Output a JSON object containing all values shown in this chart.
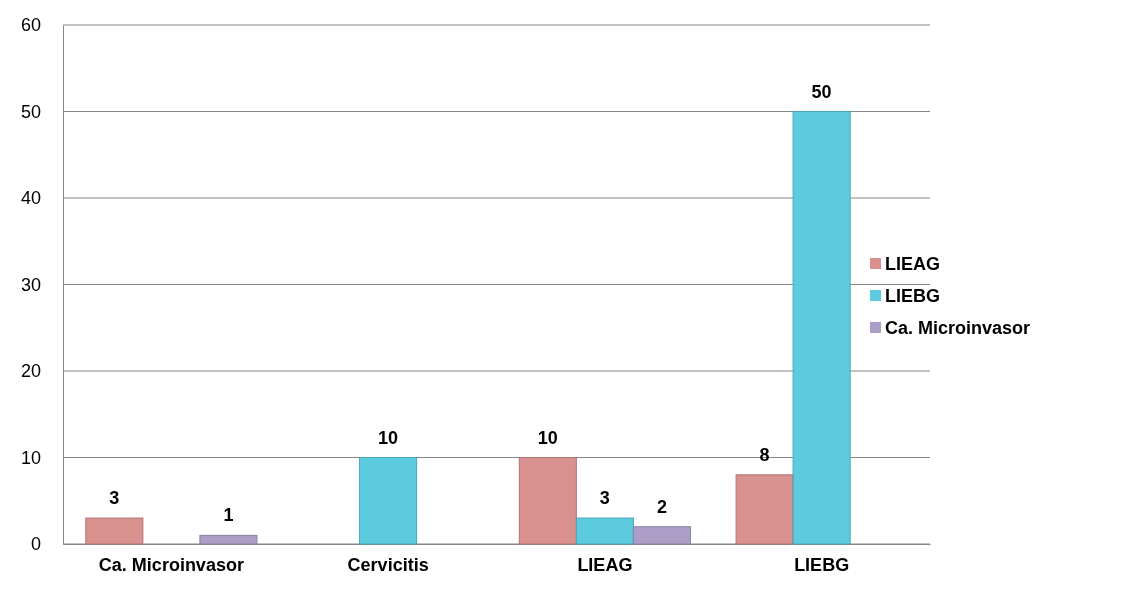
{
  "chart_data": {
    "type": "bar",
    "categories": [
      "Ca. Microinvasor",
      "Cervicitis",
      "LIEAG",
      "LIEBG"
    ],
    "series": [
      {
        "name": "LIEAG",
        "color": "#d9918f",
        "values": [
          3,
          null,
          10,
          8
        ]
      },
      {
        "name": "LIEBG",
        "color": "#5ccbe0",
        "values": [
          null,
          10,
          3,
          50
        ]
      },
      {
        "name": "Ca. Microinvasor",
        "color": "#ab9fc8",
        "values": [
          1,
          null,
          2,
          null
        ]
      }
    ],
    "ylim": [
      0,
      60
    ],
    "yticks": [
      0,
      10,
      20,
      30,
      40,
      50,
      60
    ],
    "grid": "y",
    "legend": "right",
    "data_labels": true
  }
}
